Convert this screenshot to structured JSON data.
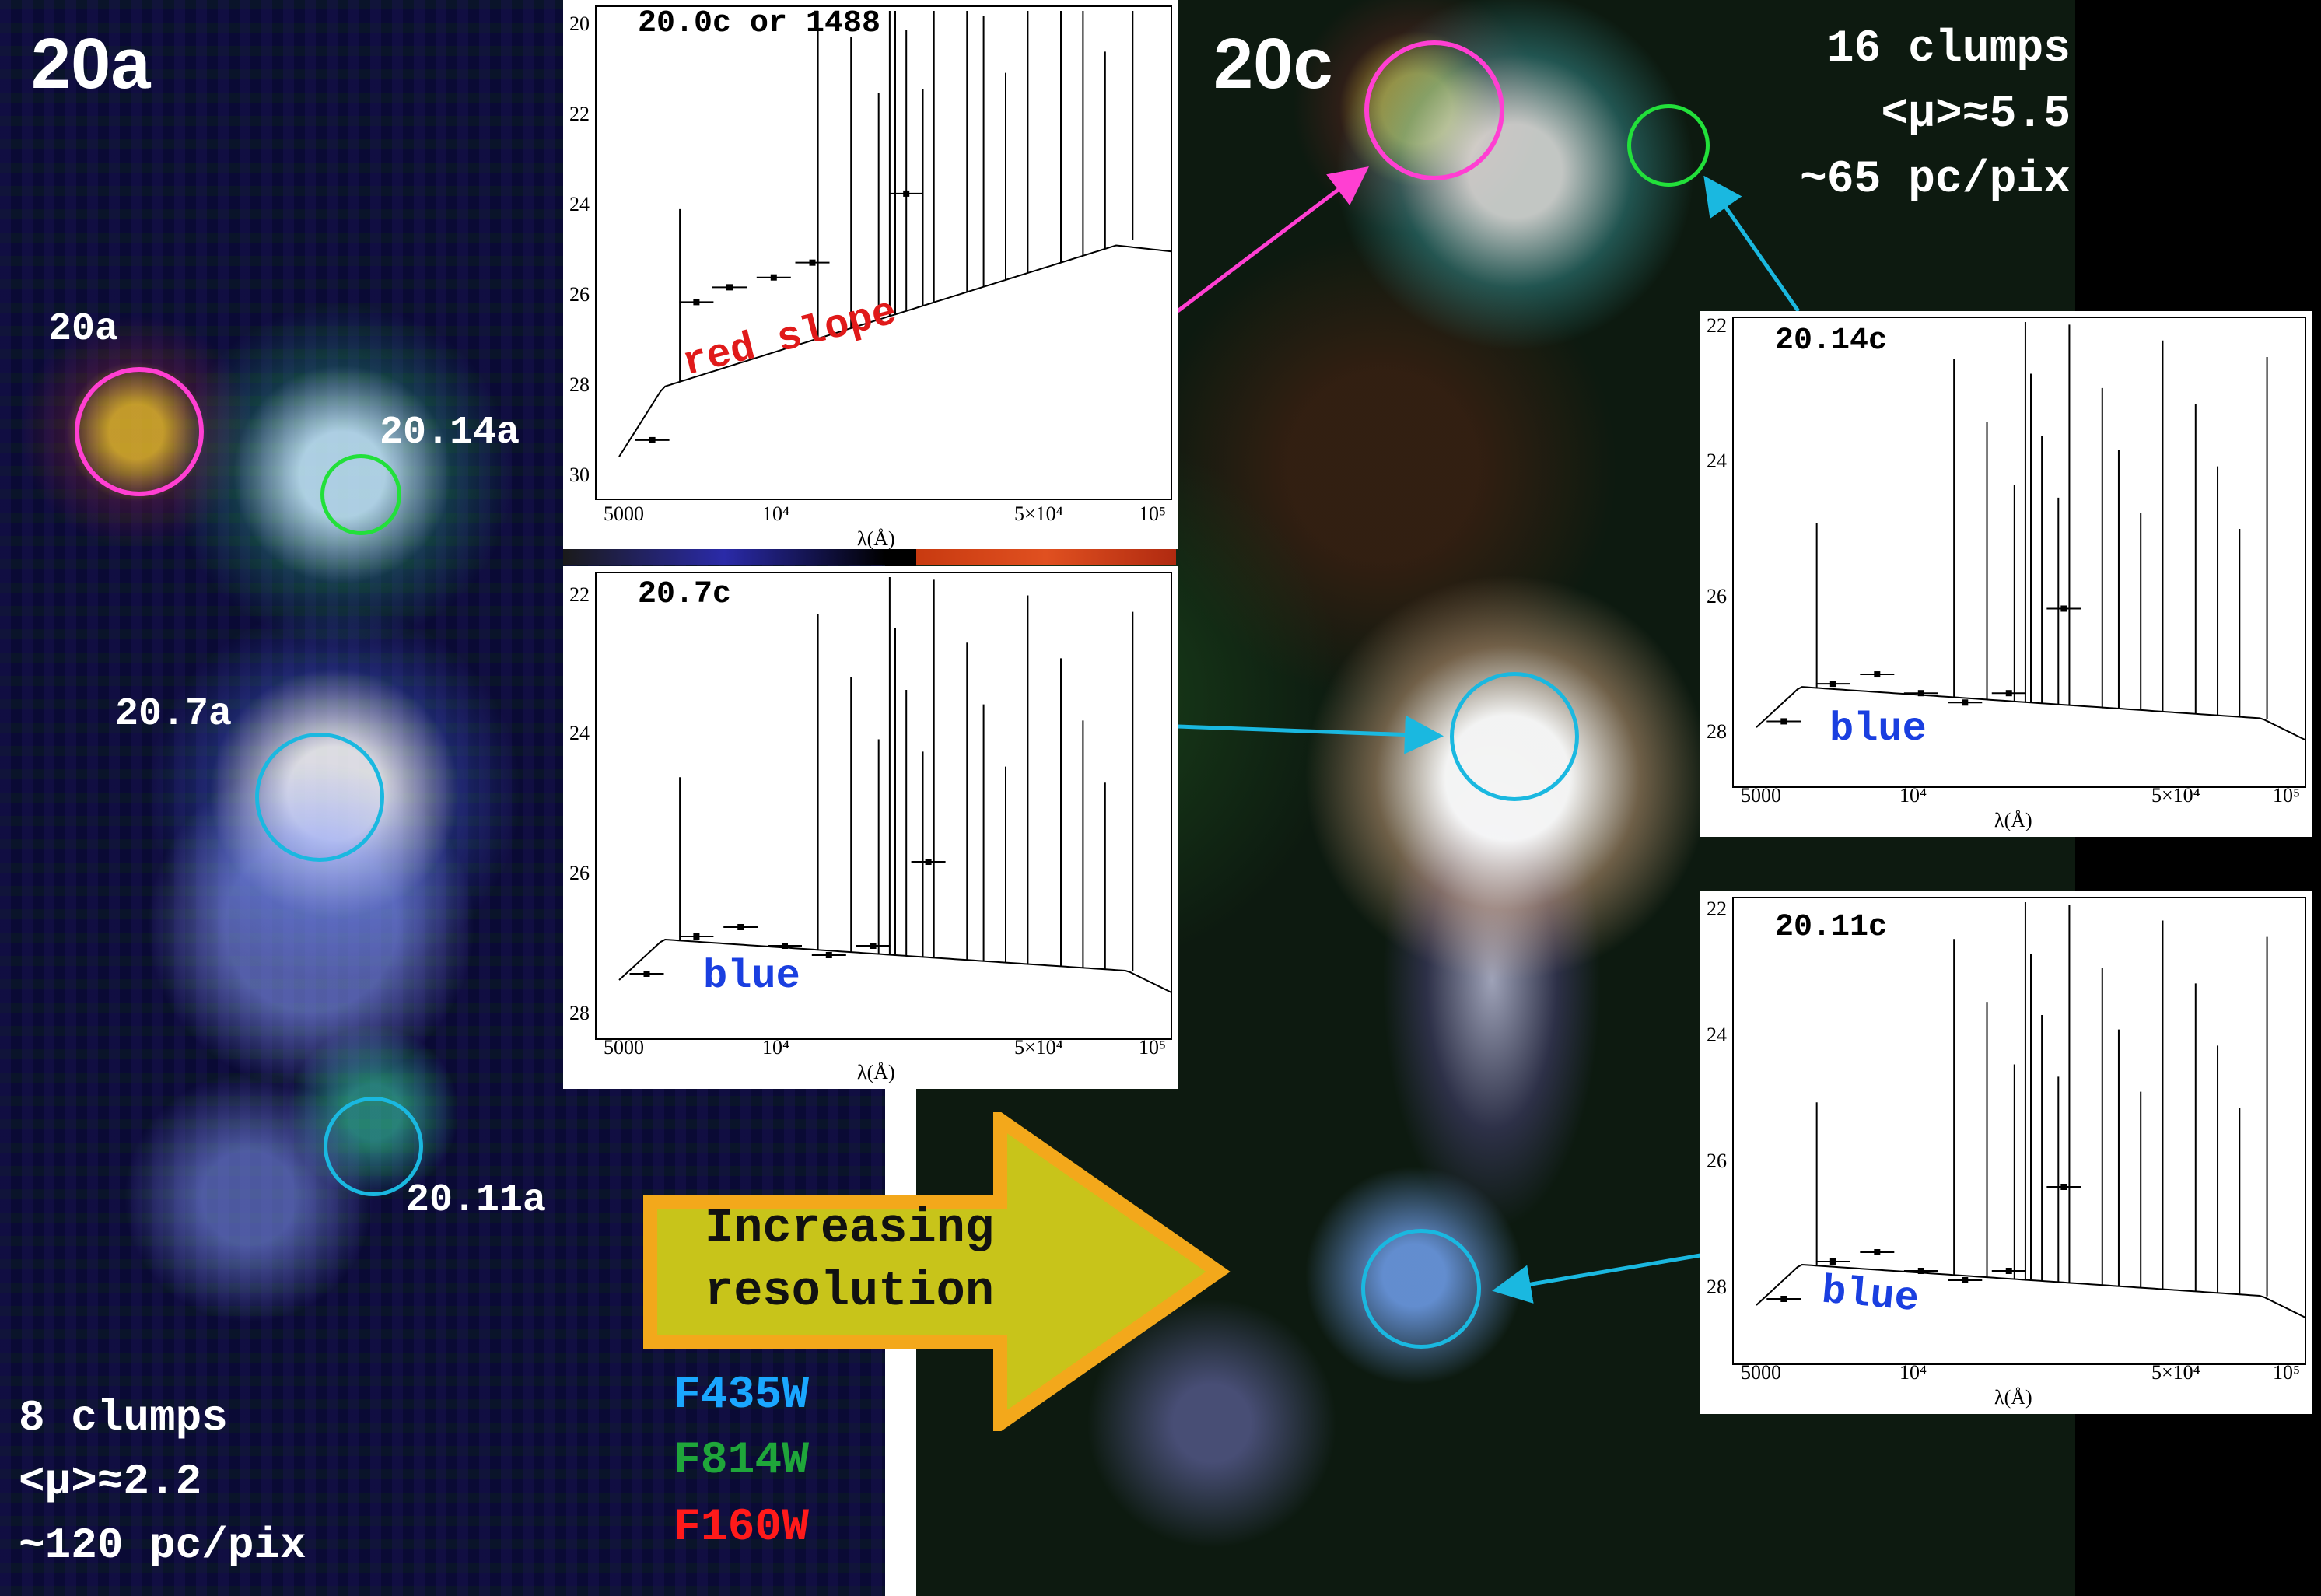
{
  "left_panel": {
    "title": "20a",
    "labels": {
      "c1": "20a",
      "c14": "20.14a",
      "c7": "20.7a",
      "c11": "20.11a"
    },
    "stats": {
      "clumps": "8 clumps",
      "mu": "<μ>≈2.2",
      "scale": "~120 pc/pix"
    }
  },
  "right_panel": {
    "title": "20c",
    "stats": {
      "clumps": "16 clumps",
      "mu": "<μ>≈5.5",
      "scale": "~65 pc/pix"
    }
  },
  "filters": [
    {
      "name": "F435W",
      "color": "#1aa7ff"
    },
    {
      "name": "F814W",
      "color": "#1fa63a"
    },
    {
      "name": "F160W",
      "color": "#ff1a1a"
    }
  ],
  "arrow": {
    "line1": "Increasing",
    "line2": "resolution",
    "fill": "#c8c41a",
    "border": "#f3a81b"
  },
  "insets": {
    "a": {
      "title": "20.0c or 1488",
      "annotation": "red slope",
      "annotation_color": "#e01a1a",
      "y_ticks": [
        "20",
        "22",
        "24",
        "26",
        "28",
        "30"
      ],
      "x_ticks": [
        "5000",
        "10⁴",
        "5×10⁴",
        "10⁵"
      ],
      "x_label": "λ(Å)"
    },
    "b": {
      "title": "20.7c",
      "annotation": "blue",
      "annotation_color": "#1a3fe0",
      "y_ticks": [
        "22",
        "24",
        "26",
        "28"
      ],
      "x_ticks": [
        "5000",
        "10⁴",
        "5×10⁴",
        "10⁵"
      ],
      "x_label": "λ(Å)"
    },
    "c": {
      "title": "20.14c",
      "annotation": "blue",
      "annotation_color": "#1a3fe0",
      "y_ticks": [
        "22",
        "24",
        "26",
        "28"
      ],
      "x_ticks": [
        "5000",
        "10⁴",
        "5×10⁴",
        "10⁵"
      ],
      "x_label": "λ(Å)"
    },
    "d": {
      "title": "20.11c",
      "annotation": "blue",
      "annotation_color": "#1a3fe0",
      "y_ticks": [
        "22",
        "24",
        "26",
        "28"
      ],
      "x_ticks": [
        "5000",
        "10⁴",
        "5×10⁴",
        "10⁵"
      ],
      "x_label": "λ(Å)"
    }
  },
  "colors": {
    "magenta": "#ff3fd2",
    "green": "#22e03a",
    "cyan": "#1ab8e0"
  }
}
